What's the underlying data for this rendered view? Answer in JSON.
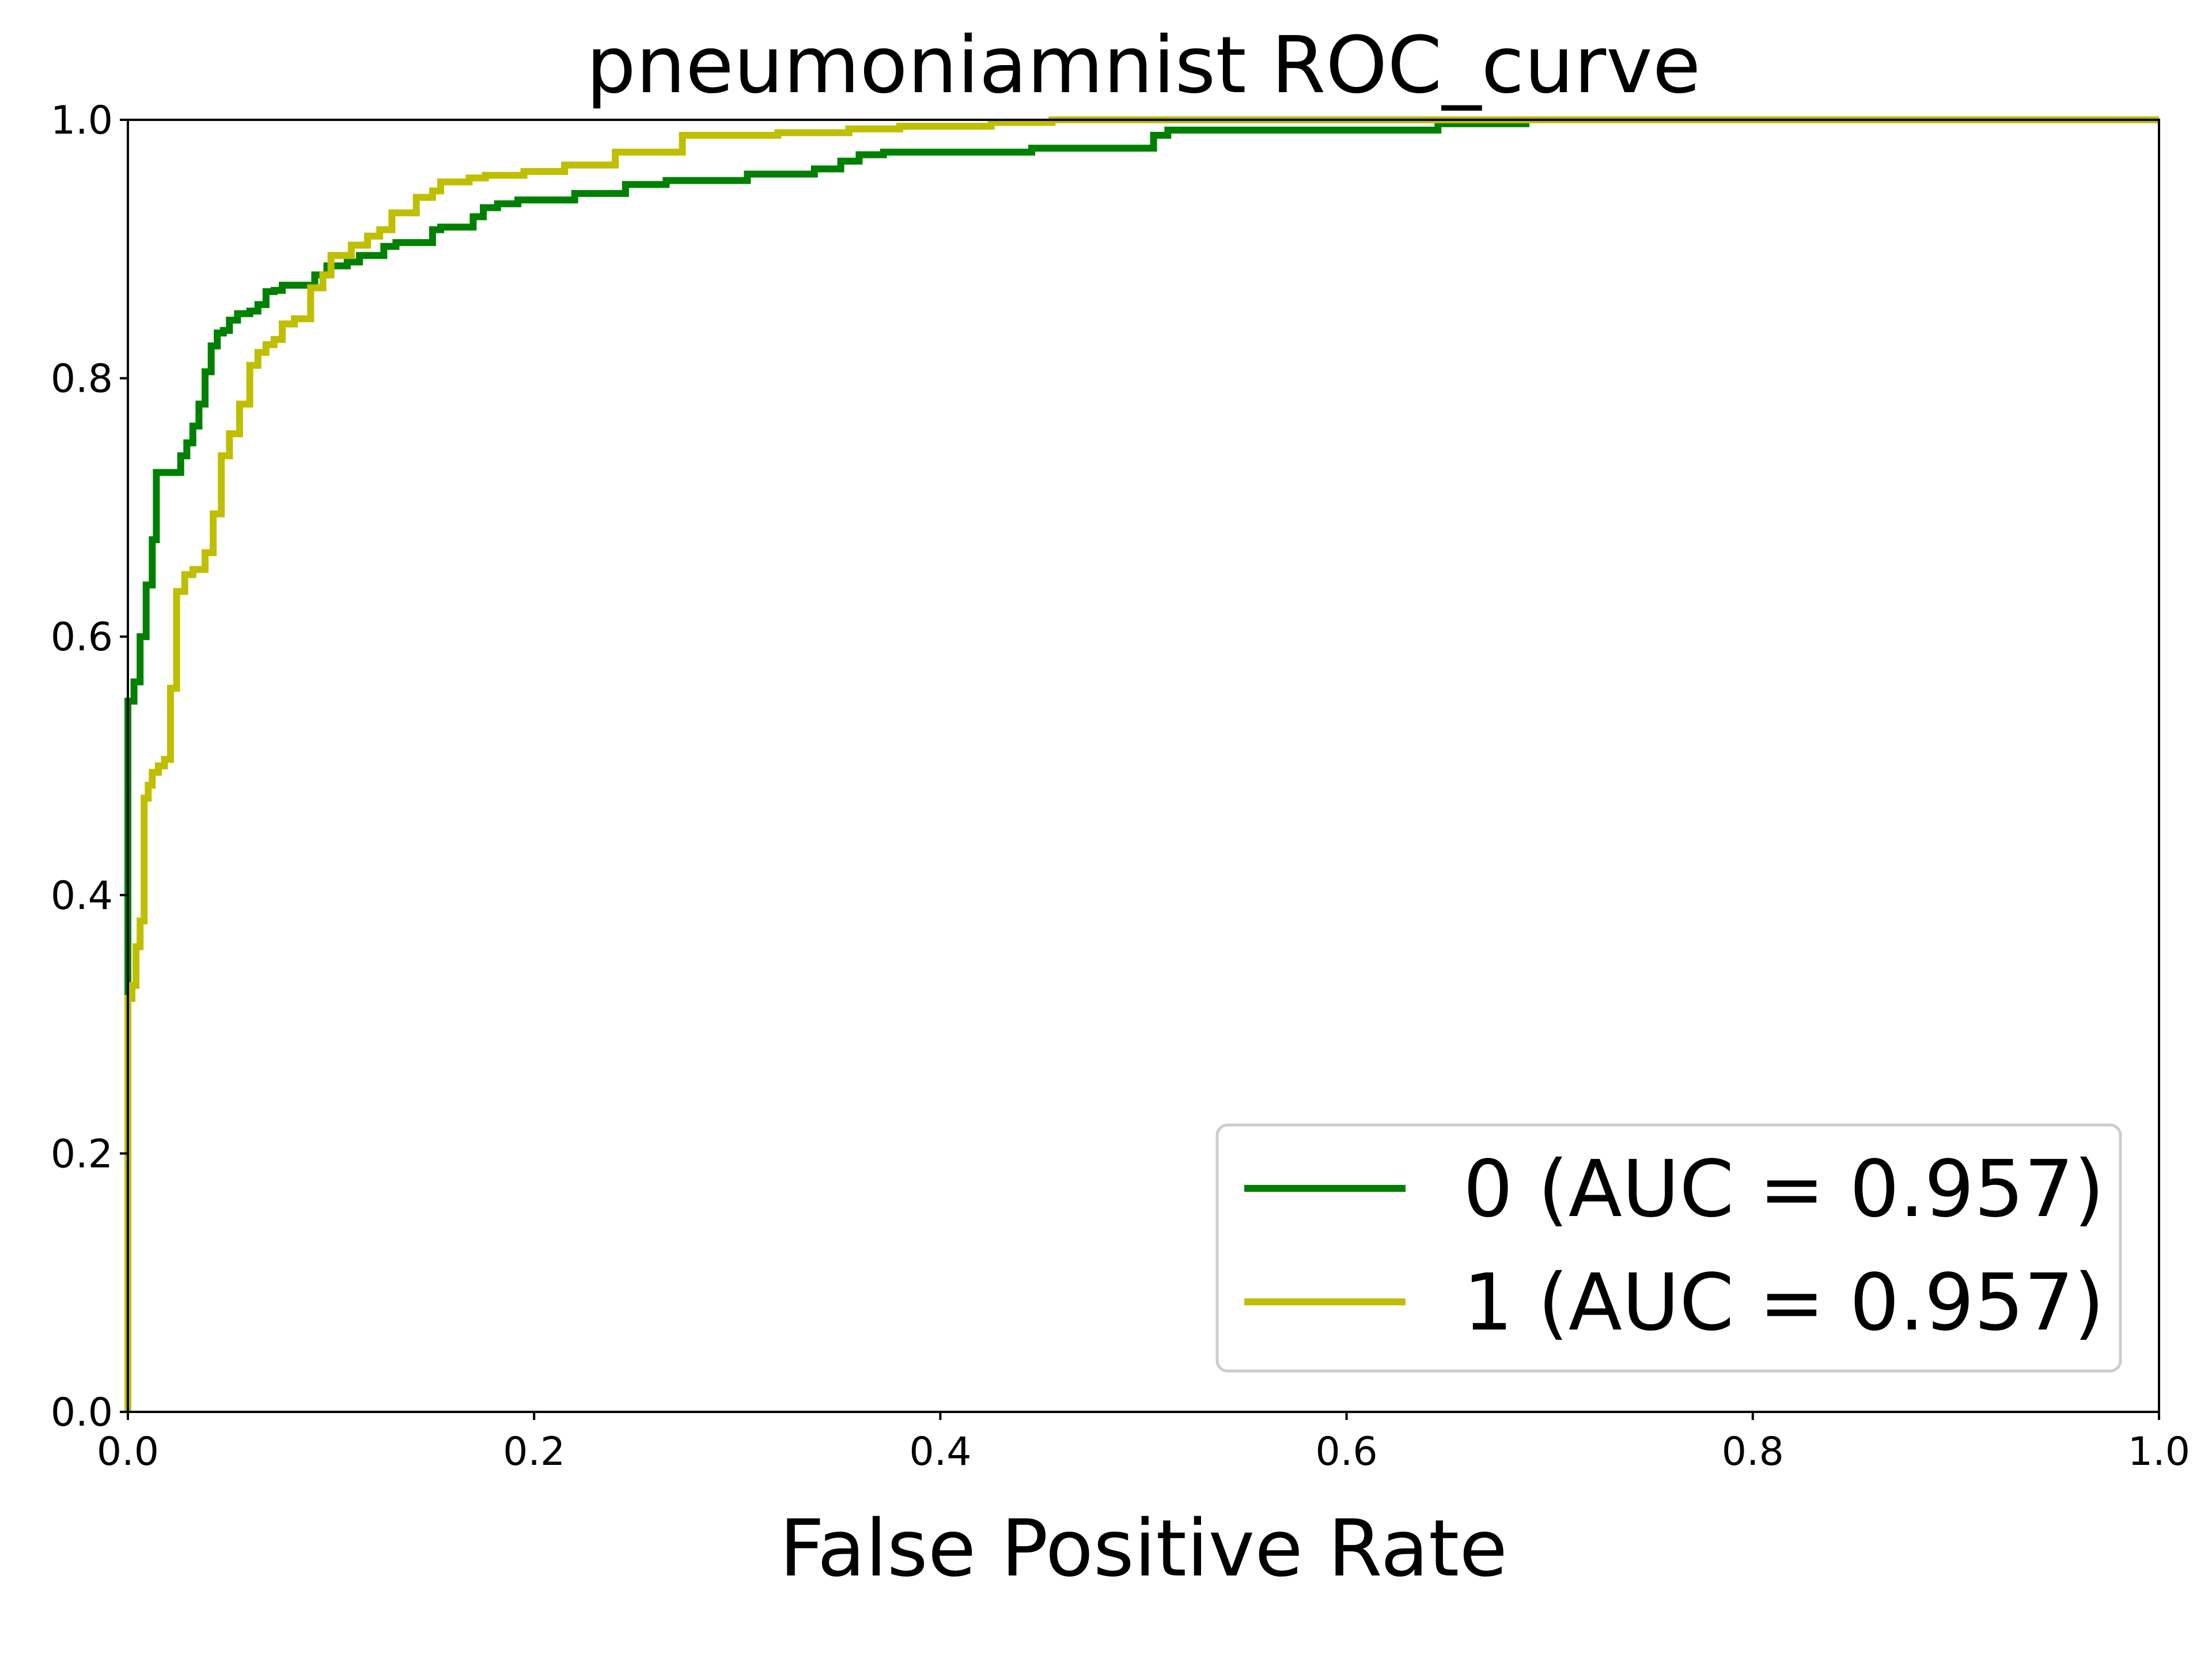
{
  "chart_data": {
    "type": "line",
    "title": "pneumoniamnist ROC_curve",
    "xlabel": "False Positive Rate",
    "ylabel": "",
    "xlim": [
      0,
      1
    ],
    "ylim": [
      0,
      1
    ],
    "xticks": [
      "0.0",
      "0.2",
      "0.4",
      "0.6",
      "0.8",
      "1.0"
    ],
    "yticks": [
      "0.0",
      "0.2",
      "0.4",
      "0.6",
      "0.8",
      "1.0"
    ],
    "grid": false,
    "legend_position": "lower-right",
    "series": [
      {
        "name": "0 (AUC = 0.957)",
        "color": "#008000",
        "x": [
          0.0,
          0.0,
          0.003,
          0.003,
          0.006,
          0.006,
          0.009,
          0.009,
          0.012,
          0.012,
          0.014,
          0.014,
          0.026,
          0.026,
          0.029,
          0.029,
          0.032,
          0.032,
          0.035,
          0.035,
          0.038,
          0.038,
          0.041,
          0.041,
          0.044,
          0.044,
          0.047,
          0.047,
          0.05,
          0.05,
          0.054,
          0.054,
          0.06,
          0.06,
          0.064,
          0.064,
          0.068,
          0.068,
          0.072,
          0.072,
          0.076,
          0.076,
          0.092,
          0.092,
          0.098,
          0.098,
          0.108,
          0.108,
          0.114,
          0.114,
          0.126,
          0.126,
          0.132,
          0.132,
          0.15,
          0.15,
          0.154,
          0.154,
          0.17,
          0.17,
          0.175,
          0.175,
          0.182,
          0.182,
          0.192,
          0.192,
          0.22,
          0.22,
          0.245,
          0.245,
          0.265,
          0.265,
          0.305,
          0.305,
          0.338,
          0.338,
          0.351,
          0.351,
          0.36,
          0.36,
          0.372,
          0.372,
          0.445,
          0.445,
          0.505,
          0.505,
          0.512,
          0.512,
          0.645,
          0.645,
          0.69
        ],
        "y": [
          0.0,
          0.55,
          0.55,
          0.565,
          0.565,
          0.6,
          0.6,
          0.64,
          0.64,
          0.675,
          0.675,
          0.727,
          0.727,
          0.74,
          0.74,
          0.75,
          0.75,
          0.763,
          0.763,
          0.78,
          0.78,
          0.805,
          0.805,
          0.825,
          0.825,
          0.835,
          0.835,
          0.837,
          0.837,
          0.845,
          0.845,
          0.85,
          0.85,
          0.852,
          0.852,
          0.857,
          0.857,
          0.867,
          0.867,
          0.868,
          0.868,
          0.872,
          0.872,
          0.88,
          0.88,
          0.887,
          0.887,
          0.89,
          0.89,
          0.895,
          0.895,
          0.902,
          0.902,
          0.905,
          0.905,
          0.915,
          0.915,
          0.917,
          0.917,
          0.925,
          0.925,
          0.932,
          0.932,
          0.935,
          0.935,
          0.938,
          0.938,
          0.943,
          0.943,
          0.95,
          0.95,
          0.953,
          0.953,
          0.958,
          0.958,
          0.962,
          0.962,
          0.968,
          0.968,
          0.973,
          0.973,
          0.975,
          0.975,
          0.978,
          0.978,
          0.988,
          0.988,
          0.992,
          0.992,
          0.997,
          0.997
        ]
      },
      {
        "name": "1 (AUC = 0.957)",
        "color": "#bfbf00",
        "x": [
          0.0,
          0.0,
          0.002,
          0.002,
          0.004,
          0.004,
          0.006,
          0.006,
          0.008,
          0.008,
          0.01,
          0.01,
          0.012,
          0.012,
          0.015,
          0.015,
          0.018,
          0.018,
          0.021,
          0.021,
          0.024,
          0.024,
          0.028,
          0.028,
          0.032,
          0.032,
          0.038,
          0.038,
          0.042,
          0.042,
          0.046,
          0.046,
          0.05,
          0.05,
          0.055,
          0.055,
          0.06,
          0.06,
          0.064,
          0.064,
          0.068,
          0.068,
          0.072,
          0.072,
          0.076,
          0.076,
          0.082,
          0.082,
          0.09,
          0.09,
          0.096,
          0.096,
          0.1,
          0.1,
          0.11,
          0.11,
          0.118,
          0.118,
          0.124,
          0.124,
          0.13,
          0.13,
          0.142,
          0.142,
          0.15,
          0.15,
          0.154,
          0.154,
          0.168,
          0.168,
          0.176,
          0.176,
          0.195,
          0.195,
          0.215,
          0.215,
          0.24,
          0.24,
          0.273,
          0.273,
          0.32,
          0.32,
          0.355,
          0.355,
          0.38,
          0.38,
          0.425,
          0.425,
          0.455,
          0.455,
          1.0
        ],
        "y": [
          0.0,
          0.32,
          0.32,
          0.33,
          0.33,
          0.36,
          0.36,
          0.38,
          0.38,
          0.475,
          0.475,
          0.485,
          0.485,
          0.495,
          0.495,
          0.5,
          0.5,
          0.505,
          0.505,
          0.56,
          0.56,
          0.635,
          0.635,
          0.648,
          0.648,
          0.652,
          0.652,
          0.665,
          0.665,
          0.695,
          0.695,
          0.74,
          0.74,
          0.757,
          0.757,
          0.78,
          0.78,
          0.81,
          0.81,
          0.82,
          0.82,
          0.826,
          0.826,
          0.83,
          0.83,
          0.842,
          0.842,
          0.846,
          0.846,
          0.87,
          0.87,
          0.88,
          0.88,
          0.895,
          0.895,
          0.903,
          0.903,
          0.91,
          0.91,
          0.915,
          0.915,
          0.928,
          0.928,
          0.94,
          0.94,
          0.945,
          0.945,
          0.952,
          0.952,
          0.955,
          0.955,
          0.957,
          0.957,
          0.96,
          0.96,
          0.965,
          0.965,
          0.975,
          0.975,
          0.988,
          0.988,
          0.99,
          0.99,
          0.993,
          0.993,
          0.995,
          0.995,
          0.998,
          0.998,
          1.0,
          1.0
        ]
      }
    ]
  }
}
